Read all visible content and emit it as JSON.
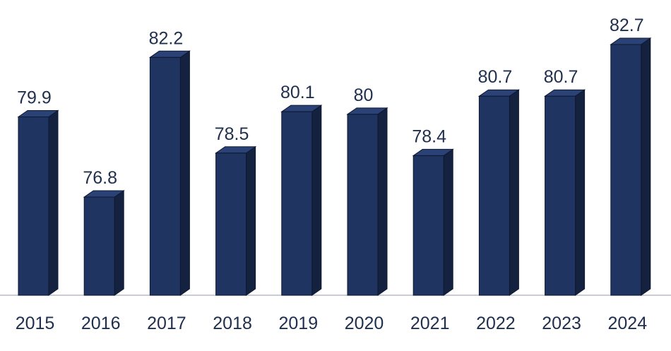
{
  "chart_data": {
    "type": "bar",
    "categories": [
      "2015",
      "2016",
      "2017",
      "2018",
      "2019",
      "2020",
      "2021",
      "2022",
      "2023",
      "2024"
    ],
    "values": [
      79.9,
      76.8,
      82.2,
      78.5,
      80.1,
      80,
      78.4,
      80.7,
      80.7,
      82.7
    ],
    "data_labels": [
      "79.9",
      "76.8",
      "82.2",
      "78.5",
      "80.1",
      "80",
      "78.4",
      "80.7",
      "80.7",
      "82.7"
    ],
    "title": "",
    "xlabel": "",
    "ylabel": "",
    "ylim": [
      73,
      83.5
    ],
    "grid": false,
    "legend": "none",
    "style": "3d-bar",
    "colors": {
      "bar_front": "#1f3461",
      "bar_side": "#14213f",
      "bar_top": "#2a4275",
      "bar_edge": "#0e1830",
      "baseline": "#c9ccd2",
      "label": "#1f2f4d"
    }
  }
}
